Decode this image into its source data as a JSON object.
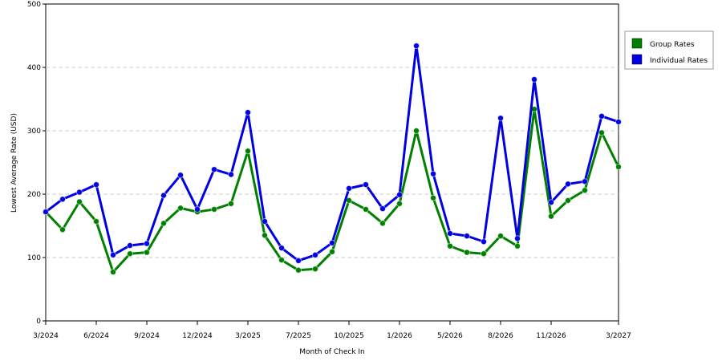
{
  "chart_data": {
    "type": "line",
    "x_label": "Month of Check In",
    "y_label": "Lowest Average Rate (USD)",
    "categories": [
      "3/2024",
      null,
      null,
      "6/2024",
      null,
      null,
      "9/2024",
      null,
      null,
      "12/2024",
      null,
      null,
      "3/2025",
      null,
      null,
      "7/2025",
      null,
      null,
      "10/2025",
      null,
      null,
      "1/2026",
      null,
      null,
      "5/2026",
      null,
      null,
      "8/2026",
      null,
      null,
      "11/2026",
      null,
      null,
      null,
      "3/2027"
    ],
    "series": [
      {
        "name": "Group Rates",
        "color": "#008000",
        "values": [
          172,
          144,
          188,
          157,
          77,
          106,
          108,
          154,
          178,
          172,
          176,
          185,
          268,
          135,
          96,
          80,
          82,
          109,
          190,
          176,
          154,
          185,
          300,
          194,
          118,
          108,
          106,
          134,
          118,
          334,
          165,
          190,
          206,
          297,
          243
        ]
      },
      {
        "name": "Individual Rates",
        "color": "#0000e0",
        "values": [
          172,
          192,
          203,
          215,
          104,
          119,
          122,
          198,
          230,
          176,
          239,
          231,
          329,
          157,
          115,
          95,
          104,
          123,
          209,
          215,
          177,
          199,
          434,
          232,
          138,
          134,
          125,
          320,
          130,
          381,
          187,
          216,
          220,
          323,
          314
        ]
      }
    ],
    "ylim": [
      0,
      500
    ],
    "yticks": [
      0,
      100,
      200,
      300,
      400,
      500
    ],
    "grid": true,
    "legend": "right"
  }
}
